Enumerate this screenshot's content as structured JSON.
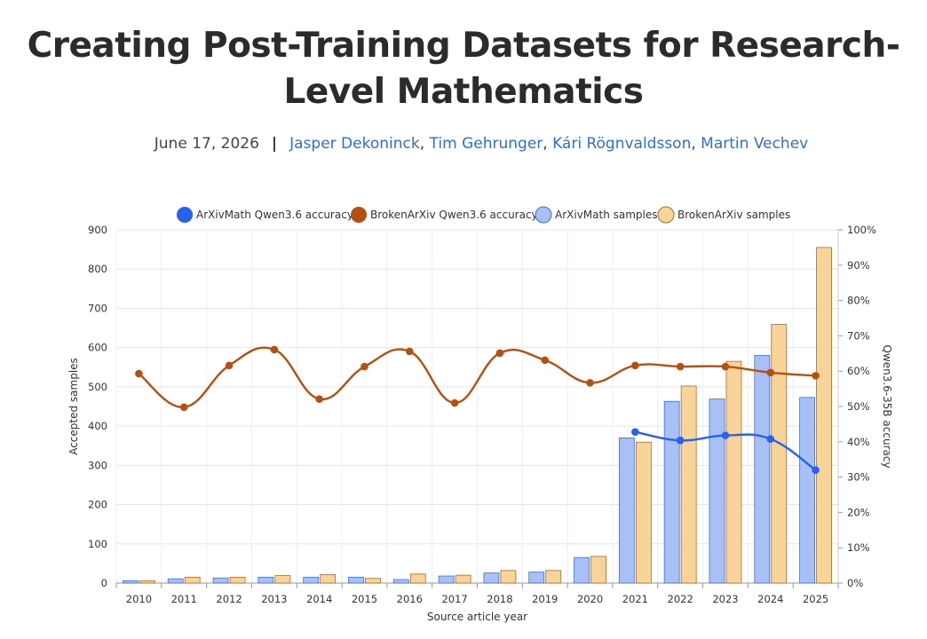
{
  "page": {
    "title_line1": "Creating Post-Training Datasets for Research-",
    "title_line2": "Level Mathematics",
    "date": "June 17, 2026",
    "separator": "|",
    "authors": [
      "Jasper Dekoninck",
      "Tim Gehrunger",
      "Kári Rögnvaldsson",
      "Martin Vechev"
    ]
  },
  "chart_data": {
    "type": "bar",
    "categories": [
      "2010",
      "2011",
      "2012",
      "2013",
      "2014",
      "2015",
      "2016",
      "2017",
      "2018",
      "2019",
      "2020",
      "2021",
      "2022",
      "2023",
      "2024",
      "2025"
    ],
    "xlabel": "Source article year",
    "ylabel": "Accepted samples",
    "y2label": "Qwen3.6-35B accuracy",
    "ylim": [
      0,
      900
    ],
    "yticks": [
      "0",
      "100",
      "200",
      "300",
      "400",
      "500",
      "600",
      "700",
      "800",
      "900"
    ],
    "y2lim": [
      0,
      100
    ],
    "y2ticks": [
      "0%",
      "10%",
      "20%",
      "30%",
      "40%",
      "50%",
      "60%",
      "70%",
      "80%",
      "90%",
      "100%"
    ],
    "grid": true,
    "legend_position": "top",
    "series": [
      {
        "name": "ArXivMath Qwen3.6 accuracy",
        "kind": "line",
        "axis": "right",
        "color": "#2563eb",
        "values": [
          null,
          null,
          null,
          null,
          null,
          null,
          null,
          null,
          null,
          null,
          null,
          42.8,
          40.4,
          41.8,
          40.8,
          32.0
        ]
      },
      {
        "name": "BrokenArXiv Qwen3.6 accuracy",
        "kind": "line",
        "axis": "right",
        "color": "#b5500f",
        "values": [
          59.3,
          49.8,
          61.6,
          66.1,
          52.1,
          61.3,
          65.6,
          51.0,
          65.1,
          63.1,
          56.7,
          61.6,
          61.3,
          61.3,
          59.6,
          58.7
        ]
      },
      {
        "name": "ArXivMath samples",
        "kind": "bar",
        "axis": "left",
        "color": "#a8c0f5",
        "border": "#3b6fd6",
        "values": [
          6,
          11,
          13,
          15,
          15,
          15,
          9,
          18,
          26,
          28,
          65,
          370,
          463,
          469,
          580,
          473
        ]
      },
      {
        "name": "BrokenArXiv samples",
        "kind": "bar",
        "axis": "left",
        "color": "#f9d49a",
        "border": "#a8682a",
        "values": [
          6,
          15,
          15,
          19,
          22,
          12,
          23,
          20,
          32,
          32,
          68,
          359,
          502,
          565,
          659,
          855
        ]
      }
    ]
  }
}
